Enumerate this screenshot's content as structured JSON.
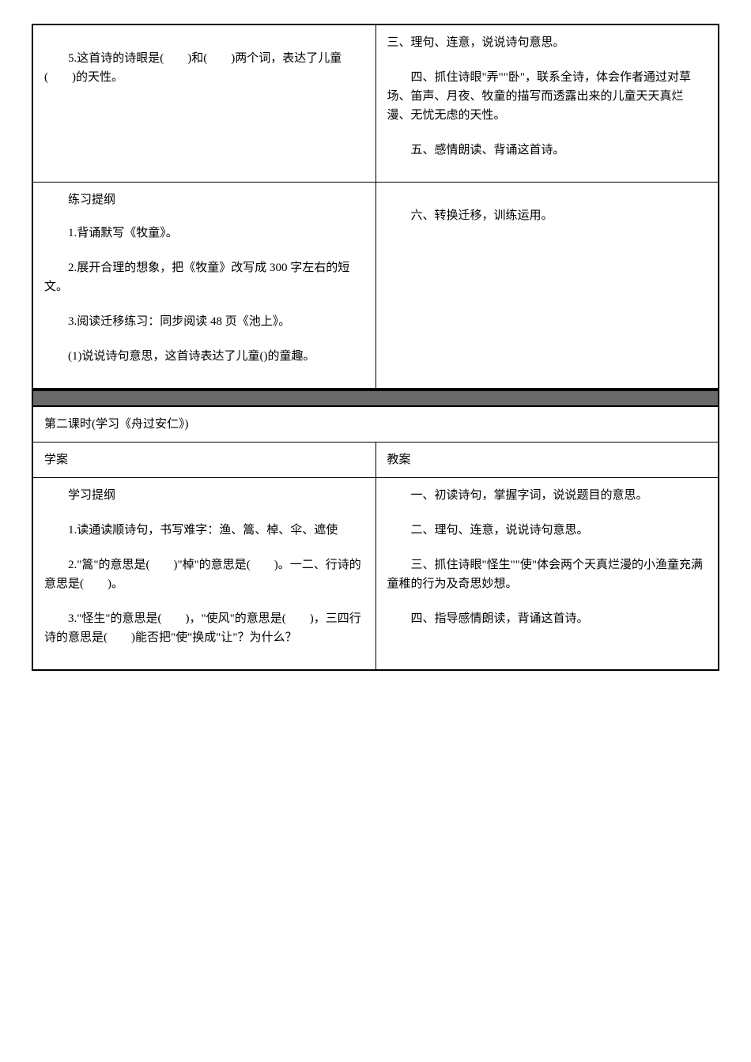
{
  "table1": {
    "leftCell": {
      "p1": "5.这首诗的诗眼是(　　)和(　　)两个词，表达了儿童(　　)的天性。",
      "p2": "练习提纲",
      "p3": "1.背诵默写《牧童》。",
      "p4": "2.展开合理的想象，把《牧童》改写成 300 字左右的短文。",
      "p5": "3.阅读迁移练习：同步阅读 48 页《池上》。",
      "p6": "(1)说说诗句意思，这首诗表达了儿童()的童趣。"
    },
    "rightCell": {
      "p1": "三、理句、连意，说说诗句意思。",
      "p2": "四、抓住诗眼\"弄\"\"卧\"，联系全诗，体会作者通过对草场、笛声、月夜、牧童的描写而透露出来的儿童天天真烂漫、无忧无虑的天性。",
      "p3": "五、感情朗读、背诵这首诗。",
      "p4": "六、转换迁移，训练运用。"
    }
  },
  "table2": {
    "header": "第二课时(学习《舟过安仁》)",
    "row2Left": "学案",
    "row2Right": "教案",
    "leftCell": {
      "p1": "学习提纲",
      "p2": "1.读通读顺诗句，书写难字：渔、篙、棹、伞、遮使",
      "p3": "2.\"篙\"的意思是(　　)\"棹\"的意思是(　　)。一二、行诗的意思是(　　)。",
      "p4": "3.\"怪生\"的意思是(　　)，\"使风\"的意思是(　　)，三四行诗的意思是(　　)能否把\"使\"换成\"让\"？为什么？"
    },
    "rightCell": {
      "p1": "一、初读诗句，掌握字词，说说题目的意思。",
      "p2": "二、理句、连意，说说诗句意思。",
      "p3": "三、抓住诗眼\"怪生\"\"使\"体会两个天真烂漫的小渔童充满童稚的行为及奇思妙想。",
      "p4": "四、指导感情朗读，背诵这首诗。"
    }
  },
  "style": {
    "backgroundColor": "#ffffff",
    "textColor": "#000000",
    "borderColor": "#000000",
    "separatorColor": "#6a6a6a",
    "fontSize": 15,
    "fontFamily": "SimSun"
  }
}
